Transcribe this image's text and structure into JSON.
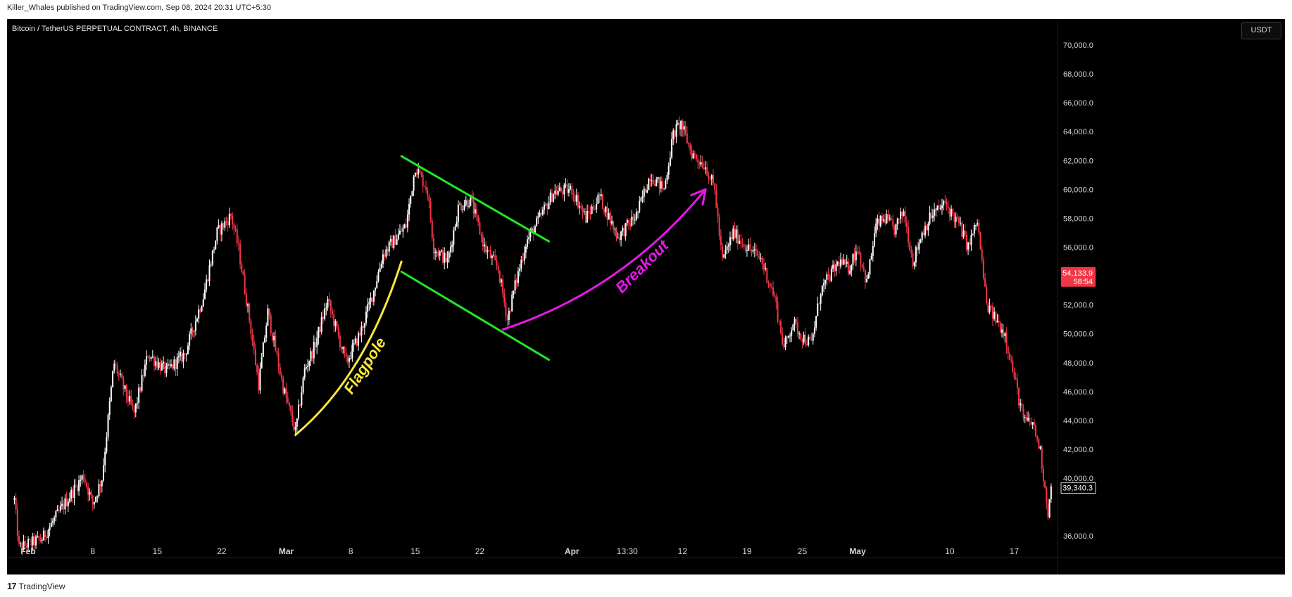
{
  "header": {
    "publish_line": "Killer_Whales published on TradingView.com, Sep 08, 2024 20:31 UTC+5:30"
  },
  "chart": {
    "symbol_title": "Bitcoin / TetherUS PERPETUAL CONTRACT, 4h, BINANCE",
    "currency_label": "USDT"
  },
  "footer": {
    "brand": "TradingView",
    "logo_icon": "tradingview-logo-icon"
  },
  "colors": {
    "background": "#000000",
    "up": "#ffffff",
    "down": "#f23645",
    "channel": "#22e822",
    "flagpole": "#f7e93c",
    "breakout": "#e619e6",
    "price_badge": "#f23645"
  },
  "chart_data": {
    "type": "candlestick",
    "title": "Bitcoin / TetherUS PERPETUAL CONTRACT, 4h, BINANCE",
    "interval": "4h",
    "ylim": [
      34500,
      71800
    ],
    "y_ticks": [
      {
        "value": 70000,
        "label": "70,000.0"
      },
      {
        "value": 68000,
        "label": "68,000.0"
      },
      {
        "value": 66000,
        "label": "66,000.0"
      },
      {
        "value": 64000,
        "label": "64,000.0"
      },
      {
        "value": 62000,
        "label": "62,000.0"
      },
      {
        "value": 60000,
        "label": "60,000.0"
      },
      {
        "value": 58000,
        "label": "58,000.0"
      },
      {
        "value": 56000,
        "label": "56,000.0"
      },
      {
        "value": 52000,
        "label": "52,000.0"
      },
      {
        "value": 50000,
        "label": "50,000.0"
      },
      {
        "value": 48000,
        "label": "48,000.0"
      },
      {
        "value": 46000,
        "label": "46,000.0"
      },
      {
        "value": 44000,
        "label": "44,000.0"
      },
      {
        "value": 42000,
        "label": "42,000.0"
      },
      {
        "value": 40000,
        "label": "40,000.0"
      },
      {
        "value": 36000,
        "label": "36,000.0"
      }
    ],
    "x_ticks": [
      {
        "label": "Feb",
        "t": 1.5,
        "bold": true
      },
      {
        "label": "8",
        "t": 8.5
      },
      {
        "label": "15",
        "t": 15.5
      },
      {
        "label": "22",
        "t": 22.5
      },
      {
        "label": "Mar",
        "t": 29.5,
        "bold": true
      },
      {
        "label": "8",
        "t": 36.5
      },
      {
        "label": "15",
        "t": 43.5
      },
      {
        "label": "22",
        "t": 50.5
      },
      {
        "label": "Apr",
        "t": 60.5,
        "bold": true
      },
      {
        "label": "13:30",
        "t": 66.5
      },
      {
        "label": "12",
        "t": 72.5
      },
      {
        "label": "19",
        "t": 79.5
      },
      {
        "label": "25",
        "t": 85.5
      },
      {
        "label": "May",
        "t": 91.5,
        "bold": true
      },
      {
        "label": "10",
        "t": 101.5
      },
      {
        "label": "17",
        "t": 108.5
      }
    ],
    "last_price": {
      "label": "54,133.9",
      "countdown": "58:54",
      "value": 54133.9
    },
    "crosshair_price": {
      "label": "39,340.3",
      "value": 39340.3
    },
    "trendlines": [
      {
        "name": "channel-upper",
        "from": [
          42.0,
          62300
        ],
        "to": [
          58.0,
          56400
        ]
      },
      {
        "name": "channel-lower",
        "from": [
          42.0,
          54300
        ],
        "to": [
          58.0,
          48200
        ]
      },
      {
        "name": "flagpole",
        "from": [
          30.5,
          43000
        ],
        "control": [
          38.0,
          47000
        ],
        "to": [
          42.0,
          55000
        ]
      },
      {
        "name": "breakout",
        "from": [
          53.0,
          50300
        ],
        "control": [
          66.0,
          53000
        ],
        "to": [
          75.0,
          60000
        ]
      }
    ],
    "annotations": [
      {
        "text": "Flagpole",
        "at": [
          38.5,
          47600
        ],
        "rotate": -57,
        "color": "#f7e93c"
      },
      {
        "text": "Breakout",
        "at": [
          68.5,
          54400
        ],
        "rotate": -45,
        "color": "#e619e6"
      }
    ],
    "anchors": [
      [
        0,
        38500
      ],
      [
        0.5,
        35200
      ],
      [
        3,
        35800
      ],
      [
        5,
        37800
      ],
      [
        7.5,
        40200
      ],
      [
        8.5,
        38200
      ],
      [
        9.5,
        40000
      ],
      [
        10.8,
        48000
      ],
      [
        12,
        46000
      ],
      [
        13,
        44500
      ],
      [
        14.5,
        48600
      ],
      [
        16.5,
        47400
      ],
      [
        18.5,
        48600
      ],
      [
        20.5,
        52600
      ],
      [
        22,
        57000
      ],
      [
        23.5,
        58200
      ],
      [
        24.3,
        56000
      ],
      [
        25.5,
        51000
      ],
      [
        26.5,
        46500
      ],
      [
        27.5,
        51500
      ],
      [
        28.3,
        49000
      ],
      [
        29.2,
        46200
      ],
      [
        30.5,
        43200
      ],
      [
        31.5,
        47500
      ],
      [
        32.5,
        49000
      ],
      [
        34,
        52300
      ],
      [
        36,
        48000
      ],
      [
        37.5,
        50000
      ],
      [
        39,
        53000
      ],
      [
        40,
        55500
      ],
      [
        42.5,
        57500
      ],
      [
        43.5,
        61600
      ],
      [
        44.8,
        60000
      ],
      [
        45.5,
        56000
      ],
      [
        47,
        55000
      ],
      [
        48.2,
        58800
      ],
      [
        49.5,
        59300
      ],
      [
        51,
        56000
      ],
      [
        52.5,
        54500
      ],
      [
        53.5,
        51000
      ],
      [
        54.2,
        53000
      ],
      [
        55.5,
        56300
      ],
      [
        57,
        58000
      ],
      [
        58.5,
        59800
      ],
      [
        60.5,
        60000
      ],
      [
        62,
        58000
      ],
      [
        63.5,
        59500
      ],
      [
        65.5,
        56700
      ],
      [
        67.5,
        58200
      ],
      [
        69,
        61000
      ],
      [
        70.5,
        60000
      ],
      [
        71.5,
        63800
      ],
      [
        72.3,
        64600
      ],
      [
        73.5,
        62500
      ],
      [
        75,
        61600
      ],
      [
        76,
        60000
      ],
      [
        76.8,
        55000
      ],
      [
        78,
        57000
      ],
      [
        79.5,
        56000
      ],
      [
        81,
        55200
      ],
      [
        82.5,
        52500
      ],
      [
        83.5,
        49000
      ],
      [
        84.5,
        50800
      ],
      [
        85.5,
        49800
      ],
      [
        86.5,
        49300
      ],
      [
        87.5,
        53000
      ],
      [
        89.5,
        55000
      ],
      [
        90.5,
        54500
      ],
      [
        91.5,
        56000
      ],
      [
        92.5,
        53500
      ],
      [
        93.5,
        57500
      ],
      [
        94.5,
        58000
      ],
      [
        95.5,
        57200
      ],
      [
        96.5,
        58500
      ],
      [
        97.5,
        55000
      ],
      [
        98.5,
        57000
      ],
      [
        99.5,
        58200
      ],
      [
        101,
        59000
      ],
      [
        102.5,
        57600
      ],
      [
        103.5,
        56000
      ],
      [
        104.5,
        57800
      ],
      [
        105.5,
        52000
      ],
      [
        106.5,
        51000
      ],
      [
        107.5,
        50000
      ],
      [
        108.5,
        47000
      ],
      [
        109.5,
        44000
      ],
      [
        110.5,
        43800
      ],
      [
        111.3,
        42000
      ],
      [
        112.2,
        37500
      ],
      [
        112.5,
        39340
      ]
    ]
  }
}
